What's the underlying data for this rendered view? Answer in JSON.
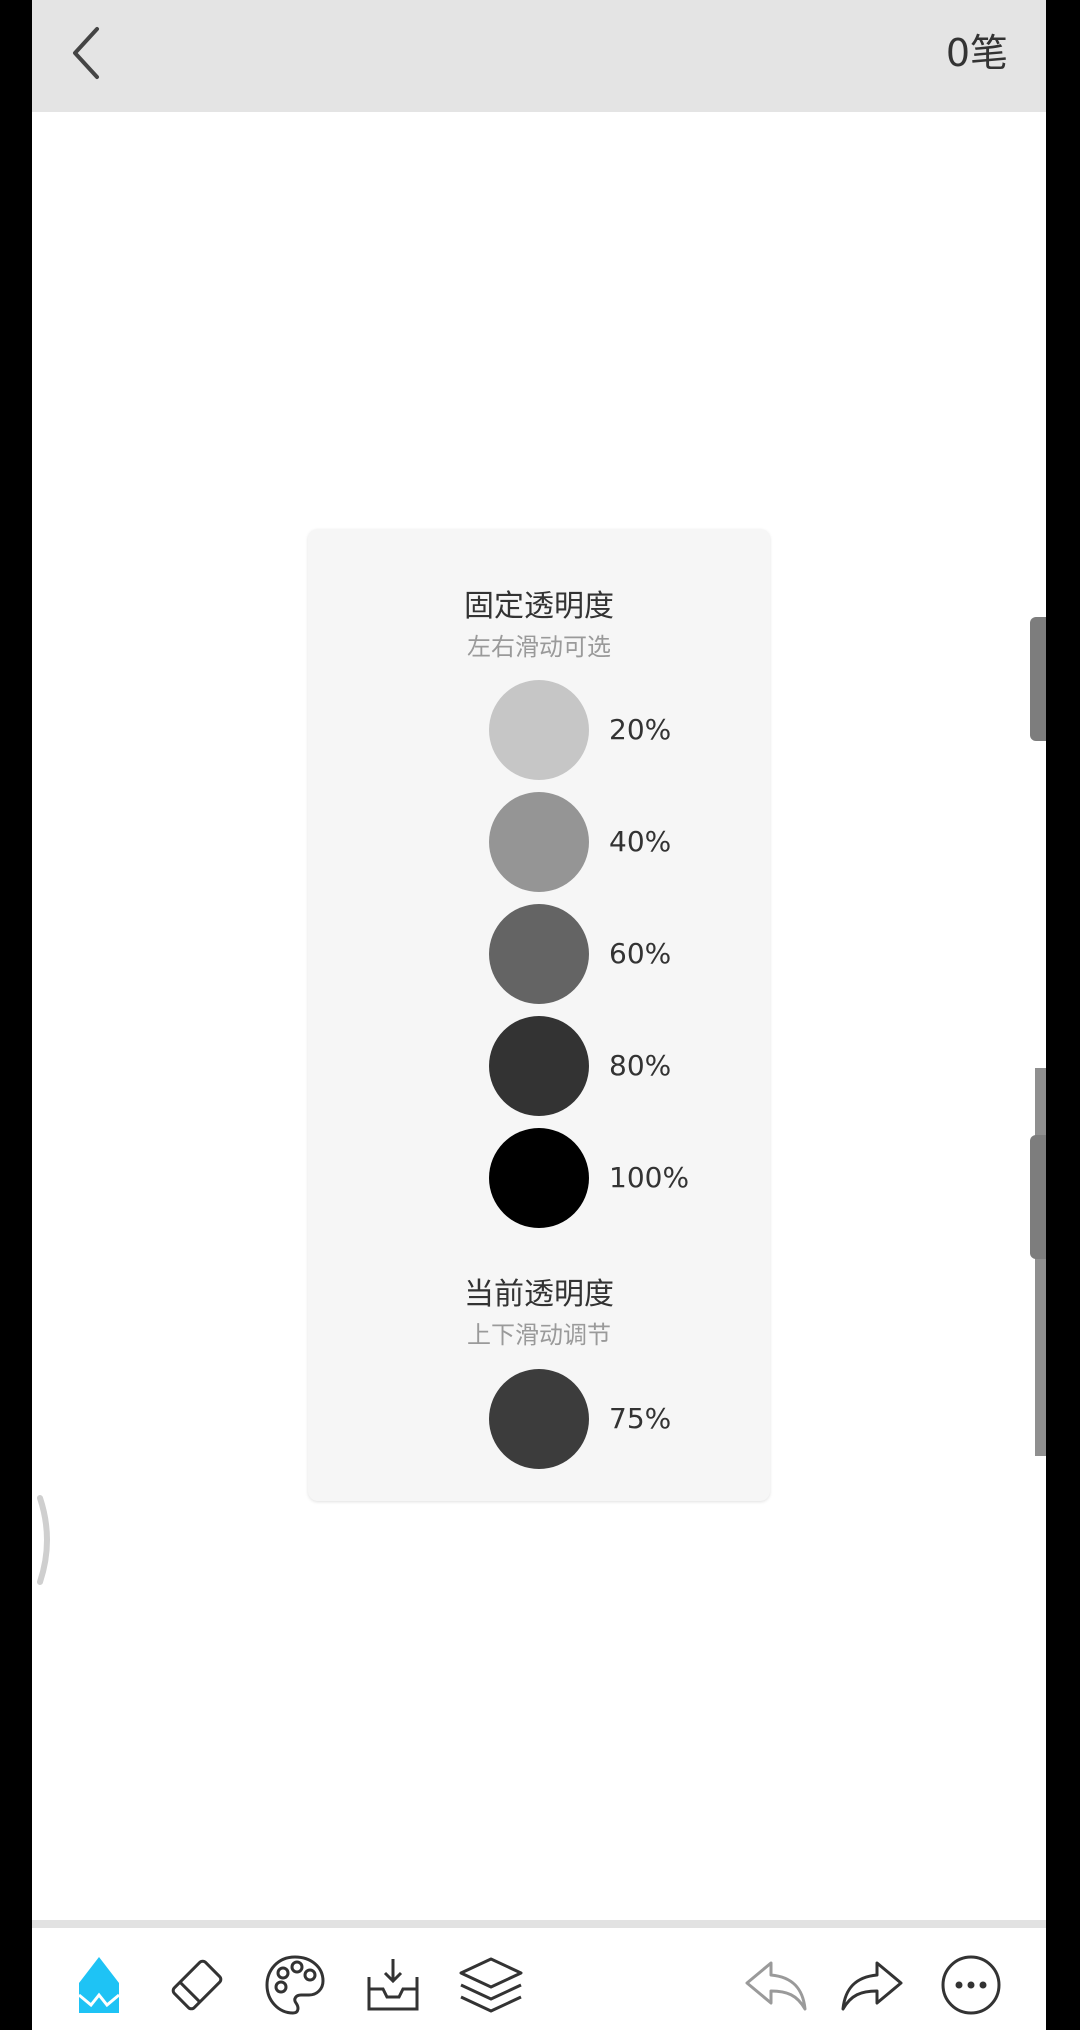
{
  "header": {
    "back_icon": "chevron-left-icon",
    "stroke_count": "0笔"
  },
  "opacity_panel": {
    "fixed": {
      "title": "固定透明度",
      "subtitle": "左右滑动可选",
      "options": [
        {
          "label": "20%",
          "value": 20,
          "color": "#c6c6c6"
        },
        {
          "label": "40%",
          "value": 40,
          "color": "#959595"
        },
        {
          "label": "60%",
          "value": 60,
          "color": "#646464"
        },
        {
          "label": "80%",
          "value": 80,
          "color": "#333333"
        },
        {
          "label": "100%",
          "value": 100,
          "color": "#000000"
        }
      ]
    },
    "current": {
      "title": "当前透明度",
      "subtitle": "上下滑动调节",
      "label": "75%",
      "value": 75,
      "color": "#3c3c3c"
    }
  },
  "toolbar": {
    "accent_color": "#1ec3f5",
    "icon_color": "#333333",
    "tools": [
      {
        "name": "pencil-icon",
        "active": true
      },
      {
        "name": "eraser-icon",
        "active": false
      },
      {
        "name": "palette-icon",
        "active": false
      },
      {
        "name": "inbox-icon",
        "active": false
      },
      {
        "name": "layers-icon",
        "active": false
      },
      {
        "name": "undo-icon",
        "active": false
      },
      {
        "name": "redo-icon",
        "active": false
      },
      {
        "name": "more-icon",
        "active": false
      }
    ]
  }
}
